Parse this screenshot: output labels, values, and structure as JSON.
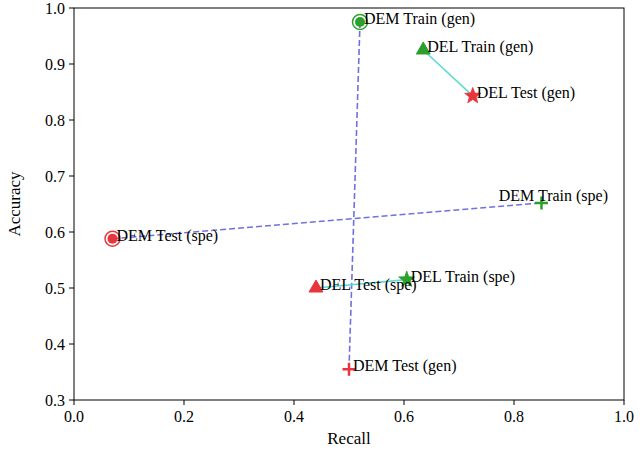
{
  "chart_data": {
    "type": "scatter",
    "x_label": "Recall",
    "y_label": "Accuracy",
    "xlim": [
      0,
      1
    ],
    "ylim": [
      0.3,
      1.0
    ],
    "xticks": [
      {
        "value": 0,
        "label": "0.0"
      },
      {
        "value": 0.2,
        "label": "0.2"
      },
      {
        "value": 0.4,
        "label": "0.4"
      },
      {
        "value": 0.6,
        "label": "0.6"
      },
      {
        "value": 0.8,
        "label": "0.8"
      },
      {
        "value": 1,
        "label": "1.0"
      }
    ],
    "yticks": [
      {
        "value": 0.3,
        "label": "0.3"
      },
      {
        "value": 0.4,
        "label": "0.4"
      },
      {
        "value": 0.5,
        "label": "0.5"
      },
      {
        "value": 0.6,
        "label": "0.6"
      },
      {
        "value": 0.7,
        "label": "0.7"
      },
      {
        "value": 0.8,
        "label": "0.8"
      },
      {
        "value": 0.9,
        "label": "0.9"
      },
      {
        "value": 1,
        "label": "1.0"
      }
    ],
    "series": [
      {
        "x": [
          0.52,
          0.5
        ],
        "values": [
          0.975,
          0.355
        ],
        "labels": [
          "DEM Train (gen)",
          "DEM Test (gen)"
        ],
        "colors": [
          "#2ca02c",
          "#e8343c"
        ],
        "markers": [
          "circle",
          "plus"
        ],
        "color": "#7070e0",
        "line_style": "dashed"
      },
      {
        "x": [
          0.07,
          0.85
        ],
        "values": [
          0.588,
          0.652
        ],
        "labels": [
          "DEM Test (spe)",
          "DEM Train (spe)"
        ],
        "colors": [
          "#e8343c",
          "#2ca02c"
        ],
        "markers": [
          "circle",
          "plus"
        ],
        "color": "#7070e0",
        "line_style": "dashed"
      },
      {
        "x": [
          0.635,
          0.725
        ],
        "values": [
          0.925,
          0.843
        ],
        "labels": [
          "DEL Train (gen)",
          "DEL Test (gen)"
        ],
        "colors": [
          "#2ca02c",
          "#e8343c"
        ],
        "markers": [
          "triangle",
          "star"
        ],
        "color": "#5fd8d8",
        "line_style": "solid"
      },
      {
        "x": [
          0.44,
          0.605
        ],
        "values": [
          0.5,
          0.515
        ],
        "labels": [
          "DEL Test (spe)",
          "DEL Train (spe)"
        ],
        "colors": [
          "#e8343c",
          "#2ca02c"
        ],
        "markers": [
          "triangle",
          "star"
        ],
        "color": "#5fd8d8",
        "line_style": "solid"
      }
    ]
  }
}
